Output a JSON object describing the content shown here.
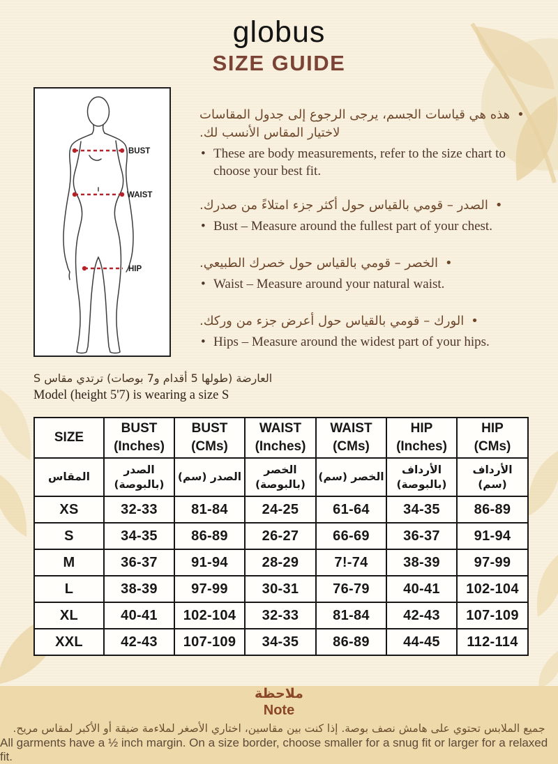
{
  "header": {
    "logo": "globus",
    "title": "SIZE GUIDE"
  },
  "diagram": {
    "labels": [
      "BUST",
      "WAIST",
      "HIP"
    ]
  },
  "instructions": [
    {
      "ar": "هذه هي قياسات الجسم، يرجى الرجوع إلى جدول المقاسات لاختيار المقاس الأنسب لك.",
      "en": "These are body measurements, refer to the size chart to choose your best fit."
    },
    {
      "ar": "الصدر – قومي بالقياس حول أكثر جزء امتلاءً من صدرك.",
      "en": "Bust – Measure around the fullest part of your chest."
    },
    {
      "ar": "الخصر – قومي بالقياس حول خصرك الطبيعي.",
      "en": "Waist – Measure around your natural waist."
    },
    {
      "ar": "الورك – قومي بالقياس حول أعرض جزء من وركك.",
      "en": "Hips – Measure around the widest part of your hips."
    }
  ],
  "model_info": {
    "ar": "العارضة (طولها 5 أقدام و7 بوصات) ترتدي مقاس S",
    "en": "Model (height 5'7) is wearing a size S"
  },
  "size_table": {
    "header_en": [
      {
        "l1": "SIZE",
        "l2": ""
      },
      {
        "l1": "BUST",
        "l2": "(Inches)"
      },
      {
        "l1": "BUST",
        "l2": "(CMs)"
      },
      {
        "l1": "WAIST",
        "l2": "(Inches)"
      },
      {
        "l1": "WAIST",
        "l2": "(CMs)"
      },
      {
        "l1": "HIP",
        "l2": "(Inches)"
      },
      {
        "l1": "HIP",
        "l2": "(CMs)"
      }
    ],
    "header_ar": [
      {
        "l1": "المقاس",
        "l2": ""
      },
      {
        "l1": "الصدر",
        "l2": "(بالبوصة)"
      },
      {
        "l1": "الصدر (سم)",
        "l2": ""
      },
      {
        "l1": "الخصر",
        "l2": "(بالبوصة)"
      },
      {
        "l1": "الخصر (سم)",
        "l2": ""
      },
      {
        "l1": "الأرداف",
        "l2": "(بالبوصة)"
      },
      {
        "l1": "الأرداف (سم)",
        "l2": ""
      }
    ],
    "rows": [
      {
        "size": "XS",
        "values": [
          "32-33",
          "81-84",
          "24-25",
          "61-64",
          "34-35",
          "86-89"
        ]
      },
      {
        "size": "S",
        "values": [
          "34-35",
          "86-89",
          "26-27",
          "66-69",
          "36-37",
          "91-94"
        ]
      },
      {
        "size": "M",
        "values": [
          "36-37",
          "91-94",
          "28-29",
          "7!-74",
          "38-39",
          "97-99"
        ]
      },
      {
        "size": "L",
        "values": [
          "38-39",
          "97-99",
          "30-31",
          "76-79",
          "40-41",
          "102-104"
        ]
      },
      {
        "size": "XL",
        "values": [
          "40-41",
          "102-104",
          "32-33",
          "81-84",
          "42-43",
          "107-109"
        ]
      },
      {
        "size": "XXL",
        "values": [
          "42-43",
          "107-109",
          "34-35",
          "86-89",
          "44-45",
          "112-114"
        ]
      }
    ]
  },
  "note": {
    "title_ar": "ملاحظة",
    "title_en": "Note",
    "body_ar": "جميع الملابس تحتوي على هامش نصف بوصة. إذا كنت بين مقاسين، اختاري الأصغر لملاءمة ضيقة أو الأكبر لمقاس مريح.",
    "body_en": "All garments have a ½ inch margin. On a size border, choose smaller for a snug fit or larger for a relaxed fit."
  },
  "colors": {
    "background": "#f8f0dc",
    "title": "#7b4335",
    "note_background": "#eed9ab",
    "note_heading": "#8a4728",
    "measure_line": "#b5222a",
    "table_border": "#161616",
    "leaf_decoration": "#ecd9b2"
  }
}
